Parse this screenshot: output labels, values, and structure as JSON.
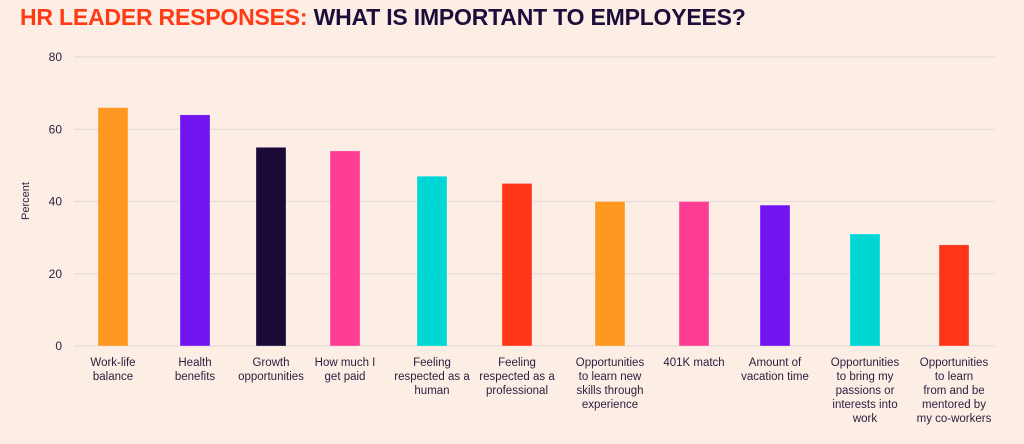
{
  "title": {
    "part1": "HR LEADER RESPONSES:",
    "part2": "WHAT IS IMPORTANT TO EMPLOYEES?"
  },
  "colors": {
    "title_accent": "#ff3a14",
    "title_dark": "#1b0e3a",
    "background": "#fdeee5"
  },
  "chart_data": {
    "type": "bar",
    "title": "HR LEADER RESPONSES: WHAT IS IMPORTANT TO EMPLOYEES?",
    "xlabel": "",
    "ylabel": "Percent",
    "ylim": [
      0,
      80
    ],
    "yticks": [
      0,
      20,
      40,
      60,
      80
    ],
    "grid": true,
    "categories": [
      "Work-life\nbalance",
      "Health\nbenefits",
      "Growth\nopportunities",
      "How much I\nget paid",
      "Feeling\nrespected as a\nhuman",
      "Feeling\nrespected as a\nprofessional",
      "Opportunities\nto learn new\nskills through\nexperience",
      "401K match",
      "Amount of\nvacation time",
      "Opportunities\nto bring my\npassions or\ninterests into\nwork",
      "Opportunities\nto learn\nfrom and be\nmentored by\nmy co-workers"
    ],
    "values": [
      66,
      64,
      55,
      54,
      47,
      45,
      40,
      40,
      39,
      31,
      28
    ],
    "bar_colors": [
      "#ff9820",
      "#7214f0",
      "#1b0a38",
      "#ff3d95",
      "#00d6d4",
      "#ff3618",
      "#ff9820",
      "#ff3d95",
      "#7214f0",
      "#00d6d4",
      "#ff3618"
    ]
  }
}
